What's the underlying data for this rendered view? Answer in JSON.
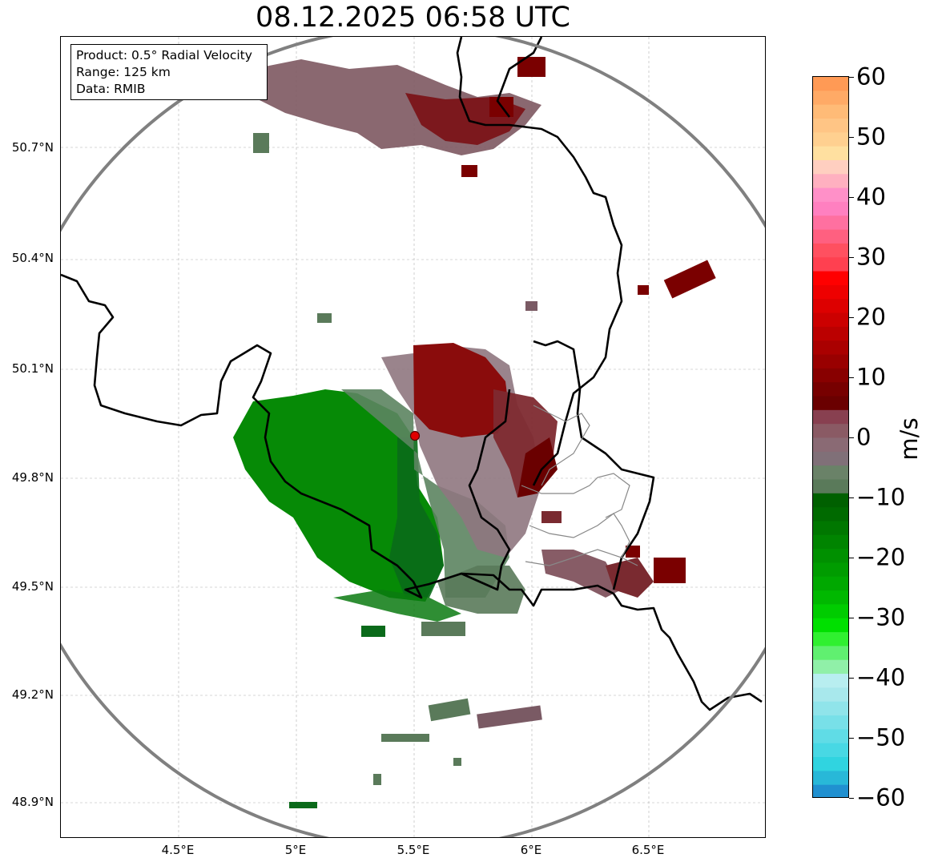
{
  "title": "08.12.2025 06:58 UTC",
  "info": {
    "product": "Product: 0.5° Radial Velocity",
    "range": "Range: 125 km",
    "source": "Data: RMIB"
  },
  "latitude_labels": [
    "50.7°N",
    "50.4°N",
    "50.1°N",
    "49.8°N",
    "49.5°N",
    "49.2°N",
    "48.9°N"
  ],
  "longitude_labels": [
    "4.5°E",
    "5°E",
    "5.5°E",
    "6°E",
    "6.5°E"
  ],
  "colorbar": {
    "unit": "m/s",
    "ticks": [
      "60",
      "50",
      "40",
      "30",
      "20",
      "10",
      "0",
      "−10",
      "−20",
      "−30",
      "−40",
      "−50",
      "−60"
    ],
    "range": [
      -60,
      60
    ]
  },
  "map": {
    "radar_site": {
      "lon": 5.5,
      "lat": 49.91
    },
    "extent": {
      "lon": [
        4.0,
        7.0
      ],
      "lat": [
        48.8,
        51.0
      ]
    },
    "colors": {
      "inbound_strong": "#008800",
      "inbound_weak": "#5a7a5a",
      "near_zero": "#8a6a74",
      "outbound_weak": "#7a4a50",
      "outbound_strong": "#7a0000",
      "range_ring": "#808080",
      "border": "#000000",
      "radar_marker": "#e00000"
    }
  }
}
